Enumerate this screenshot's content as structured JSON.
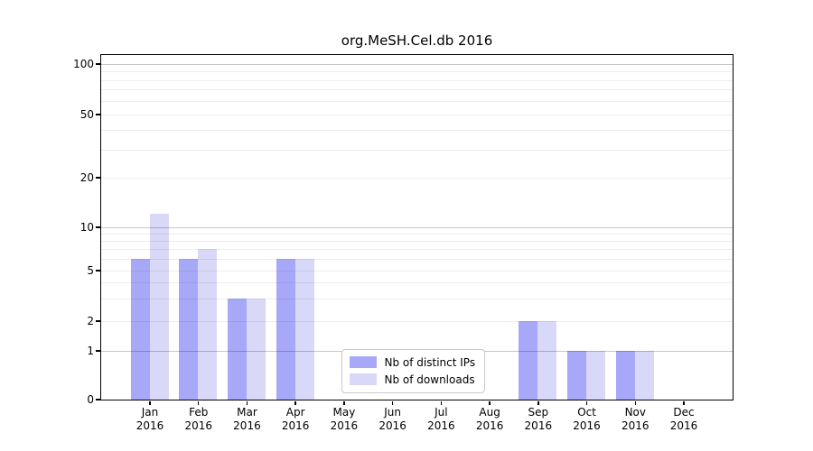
{
  "title": "org.MeSH.Cel.db 2016",
  "chart_data": {
    "type": "bar",
    "title": "org.MeSH.Cel.db 2016",
    "xlabel": "",
    "ylabel": "",
    "scale": "log-like",
    "categories": [
      "Jan",
      "Feb",
      "Mar",
      "Apr",
      "May",
      "Jun",
      "Jul",
      "Aug",
      "Sep",
      "Oct",
      "Nov",
      "Dec"
    ],
    "category_year": "2016",
    "y_ticks": [
      0,
      1,
      2,
      5,
      10,
      20,
      50,
      100
    ],
    "ylim": [
      0,
      100
    ],
    "grid": true,
    "legend_position": "bottom-center-inside",
    "series": [
      {
        "name": "Nb of distinct IPs",
        "color": "#a8a8f8",
        "values": [
          6,
          6,
          3,
          6,
          0,
          0,
          0,
          0,
          2,
          1,
          1,
          0
        ]
      },
      {
        "name": "Nb of downloads",
        "color": "#d8d8f8",
        "values": [
          12,
          7,
          3,
          6,
          0,
          0,
          0,
          0,
          2,
          1,
          1,
          0
        ]
      }
    ]
  },
  "colors": {
    "major_grid": "rgba(0,0,0,0.22)",
    "minor_grid": "rgba(0,0,0,0.07)",
    "axis": "#000000"
  }
}
